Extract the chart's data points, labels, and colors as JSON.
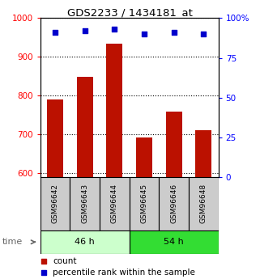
{
  "title": "GDS2233 / 1434181_at",
  "categories": [
    "GSM96642",
    "GSM96643",
    "GSM96644",
    "GSM96645",
    "GSM96646",
    "GSM96648"
  ],
  "counts": [
    790,
    848,
    935,
    692,
    758,
    712
  ],
  "percentiles": [
    91,
    92,
    93,
    90,
    91,
    90
  ],
  "ylim_left": [
    590,
    1000
  ],
  "ylim_right": [
    0,
    100
  ],
  "yticks_left": [
    600,
    700,
    800,
    900,
    1000
  ],
  "yticks_right": [
    0,
    25,
    50,
    75,
    100
  ],
  "ytick_right_labels": [
    "0",
    "25",
    "50",
    "75",
    "100%"
  ],
  "bar_color": "#bb1100",
  "dot_color": "#0000cc",
  "group1_label": "46 h",
  "group2_label": "54 h",
  "group1_indices": [
    0,
    1,
    2
  ],
  "group2_indices": [
    3,
    4,
    5
  ],
  "group1_bg": "#ccffcc",
  "group2_bg": "#33dd33",
  "sample_bg": "#cccccc",
  "legend_count_label": "count",
  "legend_pct_label": "percentile rank within the sample",
  "time_label": "time"
}
